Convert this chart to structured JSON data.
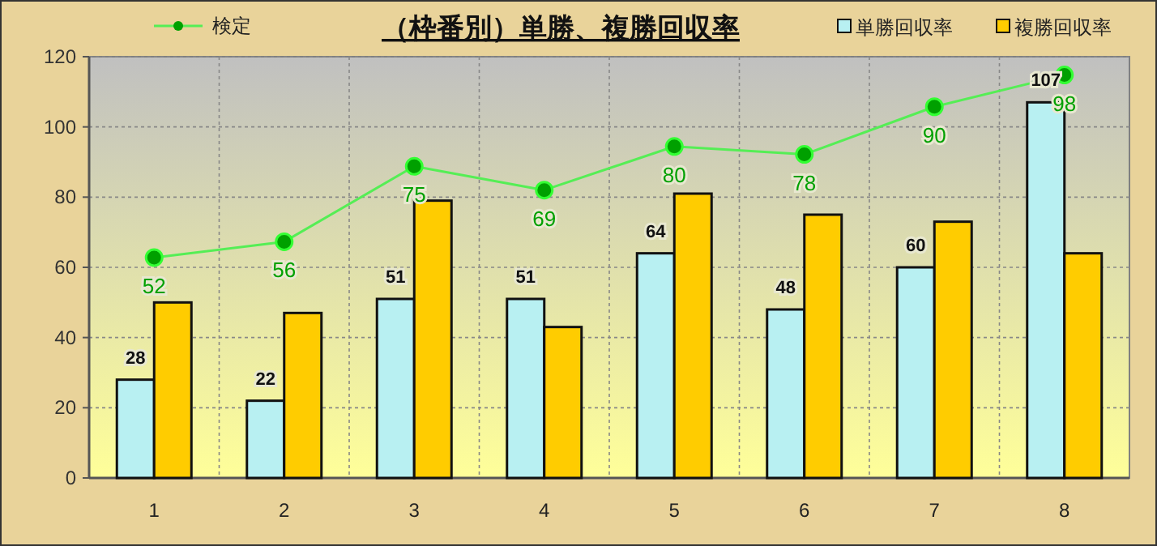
{
  "chart_data": {
    "type": "bar",
    "title": "（枠番別）単勝、複勝回収率",
    "categories": [
      "1",
      "2",
      "3",
      "4",
      "5",
      "6",
      "7",
      "8"
    ],
    "series": [
      {
        "name": "単勝回収率",
        "color": "#b8f0f2",
        "values": [
          28,
          22,
          51,
          51,
          64,
          48,
          60,
          107
        ],
        "value_labels": [
          "28",
          "22",
          "51",
          "51",
          "64",
          "48",
          "60",
          "107"
        ]
      },
      {
        "name": "複勝回収率",
        "color": "#ffcc00",
        "values": [
          50,
          47,
          79,
          43,
          81,
          75,
          73,
          64
        ]
      },
      {
        "name": "検定",
        "type": "line",
        "axis": "y2",
        "color": "#00a000",
        "marker": "circle",
        "values": [
          52,
          56,
          75,
          69,
          80,
          78,
          90,
          98
        ],
        "data_labels": true
      }
    ],
    "ylim": [
      0,
      120
    ],
    "yticks": [
      0,
      20,
      40,
      60,
      80,
      100,
      120
    ],
    "y2lim": [
      -3.5,
      102.6
    ],
    "grid": true,
    "legend": "top"
  }
}
